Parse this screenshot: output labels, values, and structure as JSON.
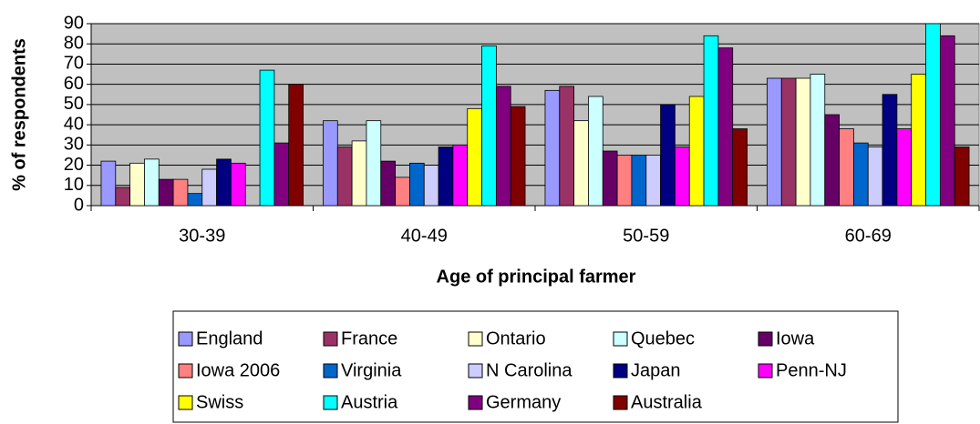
{
  "chart_data": {
    "type": "bar",
    "x_label": "Age of principal farmer",
    "y_label": "% of respondents",
    "categories": [
      "30-39",
      "40-49",
      "50-59",
      "60-69"
    ],
    "series": [
      {
        "name": "England",
        "color": "#9999ff",
        "values": [
          22,
          42,
          57,
          63
        ]
      },
      {
        "name": "France",
        "color": "#993366",
        "values": [
          9,
          29,
          59,
          63
        ]
      },
      {
        "name": "Ontario",
        "color": "#ffffcc",
        "values": [
          21,
          32,
          42,
          63
        ]
      },
      {
        "name": "Quebec",
        "color": "#ccffff",
        "values": [
          23,
          42,
          54,
          65
        ]
      },
      {
        "name": "Iowa",
        "color": "#660066",
        "values": [
          13,
          22,
          27,
          45
        ]
      },
      {
        "name": "Iowa 2006",
        "color": "#ff8080",
        "values": [
          13,
          14,
          25,
          38
        ]
      },
      {
        "name": "Virginia",
        "color": "#0066cc",
        "values": [
          6,
          21,
          25,
          31
        ]
      },
      {
        "name": "N Carolina",
        "color": "#ccccff",
        "values": [
          18,
          20,
          25,
          29
        ]
      },
      {
        "name": "Japan",
        "color": "#000080",
        "values": [
          23,
          29,
          50,
          55
        ]
      },
      {
        "name": "Penn-NJ",
        "color": "#ff00ff",
        "values": [
          21,
          30,
          29,
          38
        ]
      },
      {
        "name": "Swiss",
        "color": "#ffff00",
        "values": [
          null,
          48,
          54,
          65
        ]
      },
      {
        "name": "Austria",
        "color": "#00ffff",
        "values": [
          67,
          79,
          84,
          90
        ]
      },
      {
        "name": "Germany",
        "color": "#800080",
        "values": [
          31,
          59,
          78,
          84
        ]
      },
      {
        "name": "Australia",
        "color": "#800000",
        "values": [
          60,
          49,
          38,
          29
        ]
      }
    ],
    "ylim": [
      0,
      90
    ],
    "yticks": [
      0,
      10,
      20,
      30,
      40,
      50,
      60,
      70,
      80,
      90
    ],
    "grid": true,
    "plot_background": "#c0c0c0",
    "legend": "bottom"
  }
}
